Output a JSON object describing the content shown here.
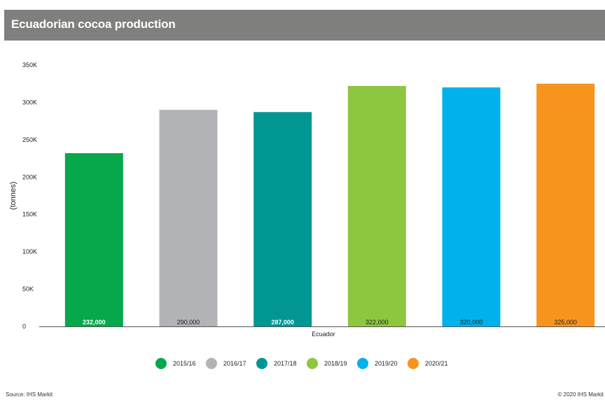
{
  "title": "Ecuadorian cocoa production",
  "chart_data": {
    "type": "bar",
    "title": "Ecuadorian cocoa production",
    "categories": [
      "Ecuador"
    ],
    "xlabel": "Ecuador",
    "ylabel": "(tonnes)",
    "ylim": [
      0,
      350000
    ],
    "yticks": [
      0,
      50000,
      100000,
      150000,
      200000,
      250000,
      300000,
      350000
    ],
    "ytick_labels": [
      "0",
      "50K",
      "100K",
      "150K",
      "200K",
      "250K",
      "300K",
      "350K"
    ],
    "grid": false,
    "legend_position": "bottom",
    "series": [
      {
        "name": "2015/16",
        "values": [
          232000
        ],
        "label": "232,000",
        "color": "#07a84b",
        "label_color": "#ffffff"
      },
      {
        "name": "2016/17",
        "values": [
          290000
        ],
        "label": "290,000",
        "color": "#b1b3b6",
        "label_color": "#222222"
      },
      {
        "name": "2017/18",
        "values": [
          287000
        ],
        "label": "287,000",
        "color": "#009694",
        "label_color": "#ffffff"
      },
      {
        "name": "2018/19",
        "values": [
          322000
        ],
        "label": "322,000",
        "color": "#8dc63f",
        "label_color": "#222222"
      },
      {
        "name": "2019/20",
        "values": [
          320000
        ],
        "label": "320,000",
        "color": "#00b1eb",
        "label_color": "#222222"
      },
      {
        "name": "2020/21",
        "values": [
          325000
        ],
        "label": "325,000",
        "color": "#f7941e",
        "label_color": "#222222"
      }
    ]
  },
  "footer": {
    "source": "Source: IHS Markit",
    "copyright": "© 2020 IHS Markit"
  }
}
